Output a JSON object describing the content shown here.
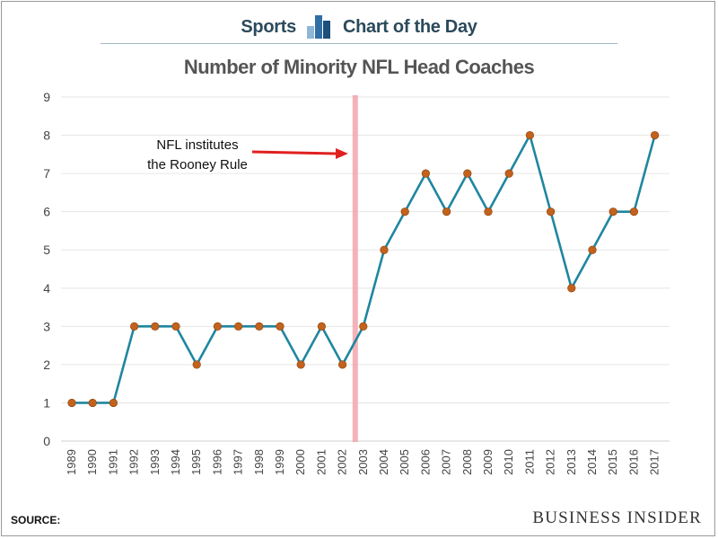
{
  "header": {
    "left": "Sports",
    "right": "Chart of the Day",
    "logo_colors": [
      "#8fb6d6",
      "#2f6fa6",
      "#1d4f7c"
    ]
  },
  "footer": {
    "source_label": "SOURCE:",
    "brand": "BUSINESS INSIDER"
  },
  "annotation": {
    "lines": [
      "NFL institutes",
      "the Rooney Rule"
    ],
    "year": "2003",
    "arrow_color": "#e02020",
    "band_color": "#f2a5ad"
  },
  "colors": {
    "line": "#1f86a0",
    "marker": "#c2621c",
    "grid": "#e6e6e6"
  },
  "chart_data": {
    "type": "line",
    "title": "Number of Minority NFL Head Coaches",
    "xlabel": "",
    "ylabel": "",
    "ylim": [
      0,
      9
    ],
    "yticks": [
      0,
      1,
      2,
      3,
      4,
      5,
      6,
      7,
      8,
      9
    ],
    "grid": true,
    "categories": [
      "1989",
      "1990",
      "1991",
      "1992",
      "1993",
      "1994",
      "1995",
      "1996",
      "1997",
      "1998",
      "1999",
      "2000",
      "2001",
      "2002",
      "2003",
      "2004",
      "2005",
      "2006",
      "2007",
      "2008",
      "2009",
      "2010",
      "2011",
      "2012",
      "2013",
      "2014",
      "2015",
      "2016",
      "2017"
    ],
    "values": [
      1,
      1,
      1,
      3,
      3,
      3,
      2,
      3,
      3,
      3,
      3,
      2,
      3,
      2,
      3,
      5,
      6,
      7,
      6,
      7,
      6,
      7,
      8,
      6,
      4,
      5,
      6,
      6,
      8
    ]
  }
}
